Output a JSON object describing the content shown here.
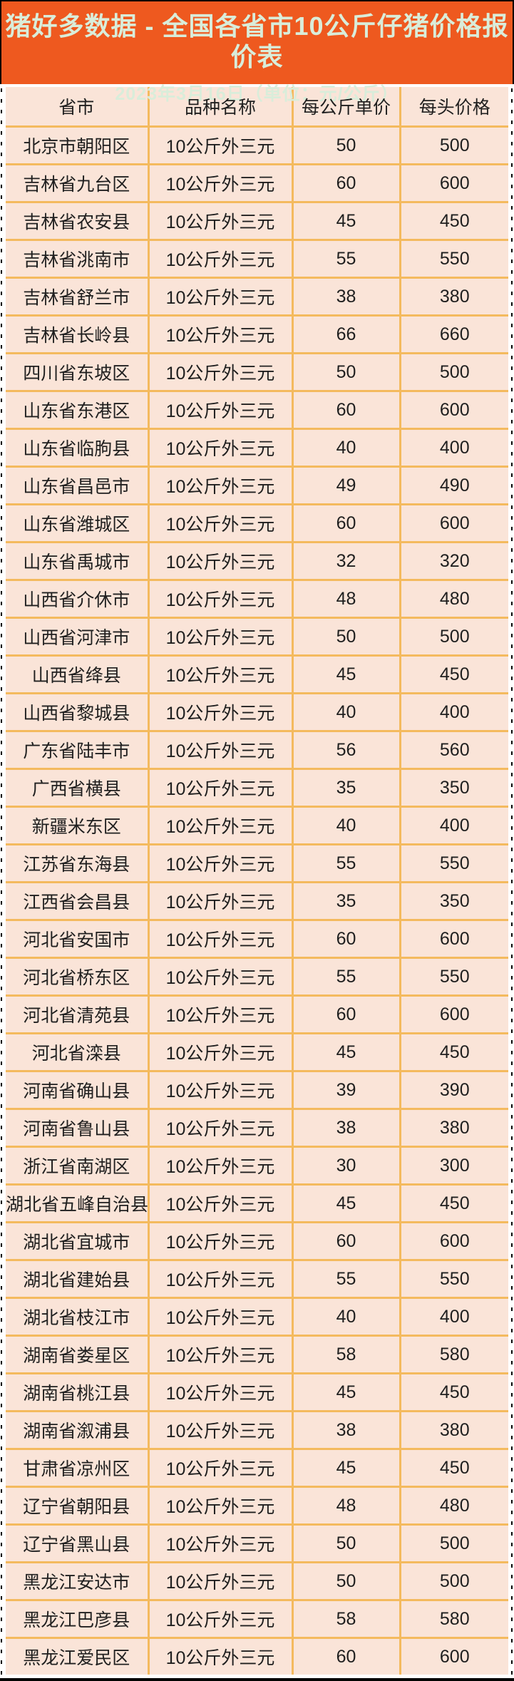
{
  "banner": {
    "title": "猪好多数据 - 全国各省市10公斤仔猪价格报价表",
    "subtitle": "2023年3月16日（单位：元/公斤）",
    "bg_color": "#EE591F",
    "text_color": "#D9EDDA"
  },
  "table": {
    "cell_bg": "#FAE4D8",
    "border_color": "#F4BA5E",
    "columns": [
      "省市",
      "品种名称",
      "每公斤单价",
      "每头价格"
    ],
    "rows": [
      [
        "北京市朝阳区",
        "10公斤外三元",
        "50",
        "500"
      ],
      [
        "吉林省九台区",
        "10公斤外三元",
        "60",
        "600"
      ],
      [
        "吉林省农安县",
        "10公斤外三元",
        "45",
        "450"
      ],
      [
        "吉林省洮南市",
        "10公斤外三元",
        "55",
        "550"
      ],
      [
        "吉林省舒兰市",
        "10公斤外三元",
        "38",
        "380"
      ],
      [
        "吉林省长岭县",
        "10公斤外三元",
        "66",
        "660"
      ],
      [
        "四川省东坡区",
        "10公斤外三元",
        "50",
        "500"
      ],
      [
        "山东省东港区",
        "10公斤外三元",
        "60",
        "600"
      ],
      [
        "山东省临朐县",
        "10公斤外三元",
        "40",
        "400"
      ],
      [
        "山东省昌邑市",
        "10公斤外三元",
        "49",
        "490"
      ],
      [
        "山东省潍城区",
        "10公斤外三元",
        "60",
        "600"
      ],
      [
        "山东省禹城市",
        "10公斤外三元",
        "32",
        "320"
      ],
      [
        "山西省介休市",
        "10公斤外三元",
        "48",
        "480"
      ],
      [
        "山西省河津市",
        "10公斤外三元",
        "50",
        "500"
      ],
      [
        "山西省绛县",
        "10公斤外三元",
        "45",
        "450"
      ],
      [
        "山西省黎城县",
        "10公斤外三元",
        "40",
        "400"
      ],
      [
        "广东省陆丰市",
        "10公斤外三元",
        "56",
        "560"
      ],
      [
        "广西省横县",
        "10公斤外三元",
        "35",
        "350"
      ],
      [
        "新疆米东区",
        "10公斤外三元",
        "40",
        "400"
      ],
      [
        "江苏省东海县",
        "10公斤外三元",
        "55",
        "550"
      ],
      [
        "江西省会昌县",
        "10公斤外三元",
        "35",
        "350"
      ],
      [
        "河北省安国市",
        "10公斤外三元",
        "60",
        "600"
      ],
      [
        "河北省桥东区",
        "10公斤外三元",
        "55",
        "550"
      ],
      [
        "河北省清苑县",
        "10公斤外三元",
        "60",
        "600"
      ],
      [
        "河北省滦县",
        "10公斤外三元",
        "45",
        "450"
      ],
      [
        "河南省确山县",
        "10公斤外三元",
        "39",
        "390"
      ],
      [
        "河南省鲁山县",
        "10公斤外三元",
        "38",
        "380"
      ],
      [
        "浙江省南湖区",
        "10公斤外三元",
        "30",
        "300"
      ],
      [
        "湖北省五峰自治县",
        "10公斤外三元",
        "45",
        "450"
      ],
      [
        "湖北省宜城市",
        "10公斤外三元",
        "60",
        "600"
      ],
      [
        "湖北省建始县",
        "10公斤外三元",
        "55",
        "550"
      ],
      [
        "湖北省枝江市",
        "10公斤外三元",
        "40",
        "400"
      ],
      [
        "湖南省娄星区",
        "10公斤外三元",
        "58",
        "580"
      ],
      [
        "湖南省桃江县",
        "10公斤外三元",
        "45",
        "450"
      ],
      [
        "湖南省溆浦县",
        "10公斤外三元",
        "38",
        "380"
      ],
      [
        "甘肃省凉州区",
        "10公斤外三元",
        "45",
        "450"
      ],
      [
        "辽宁省朝阳县",
        "10公斤外三元",
        "48",
        "480"
      ],
      [
        "辽宁省黑山县",
        "10公斤外三元",
        "50",
        "500"
      ],
      [
        "黑龙江安达市",
        "10公斤外三元",
        "50",
        "500"
      ],
      [
        "黑龙江巴彦县",
        "10公斤外三元",
        "58",
        "580"
      ],
      [
        "黑龙江爱民区",
        "10公斤外三元",
        "60",
        "600"
      ]
    ]
  },
  "chart_data": {
    "type": "table",
    "title": "猪好多数据 - 全国各省市10公斤仔猪价格报价表",
    "subtitle": "2023年3月16日（单位：元/公斤）",
    "columns": [
      "省市",
      "品种名称",
      "每公斤单价",
      "每头价格"
    ],
    "categories": [
      "北京市朝阳区",
      "吉林省九台区",
      "吉林省农安县",
      "吉林省洮南市",
      "吉林省舒兰市",
      "吉林省长岭县",
      "四川省东坡区",
      "山东省东港区",
      "山东省临朐县",
      "山东省昌邑市",
      "山东省潍城区",
      "山东省禹城市",
      "山西省介休市",
      "山西省河津市",
      "山西省绛县",
      "山西省黎城县",
      "广东省陆丰市",
      "广西省横县",
      "新疆米东区",
      "江苏省东海县",
      "江西省会昌县",
      "河北省安国市",
      "河北省桥东区",
      "河北省清苑县",
      "河北省滦县",
      "河南省确山县",
      "河南省鲁山县",
      "浙江省南湖区",
      "湖北省五峰自治县",
      "湖北省宜城市",
      "湖北省建始县",
      "湖北省枝江市",
      "湖南省娄星区",
      "湖南省桃江县",
      "湖南省溆浦县",
      "甘肃省凉州区",
      "辽宁省朝阳县",
      "辽宁省黑山县",
      "黑龙江安达市",
      "黑龙江巴彦县",
      "黑龙江爱民区"
    ],
    "series": [
      {
        "name": "每公斤单价",
        "values": [
          50,
          60,
          45,
          55,
          38,
          66,
          50,
          60,
          40,
          49,
          60,
          32,
          48,
          50,
          45,
          40,
          56,
          35,
          40,
          55,
          35,
          60,
          55,
          60,
          45,
          39,
          38,
          30,
          45,
          60,
          55,
          40,
          58,
          45,
          38,
          45,
          48,
          50,
          50,
          58,
          60
        ]
      },
      {
        "name": "每头价格",
        "values": [
          500,
          600,
          450,
          550,
          380,
          660,
          500,
          600,
          400,
          490,
          600,
          320,
          480,
          500,
          450,
          400,
          560,
          350,
          400,
          550,
          350,
          600,
          550,
          600,
          450,
          390,
          380,
          300,
          450,
          600,
          550,
          400,
          580,
          450,
          380,
          450,
          480,
          500,
          500,
          580,
          600
        ]
      }
    ],
    "breed": "10公斤外三元"
  }
}
